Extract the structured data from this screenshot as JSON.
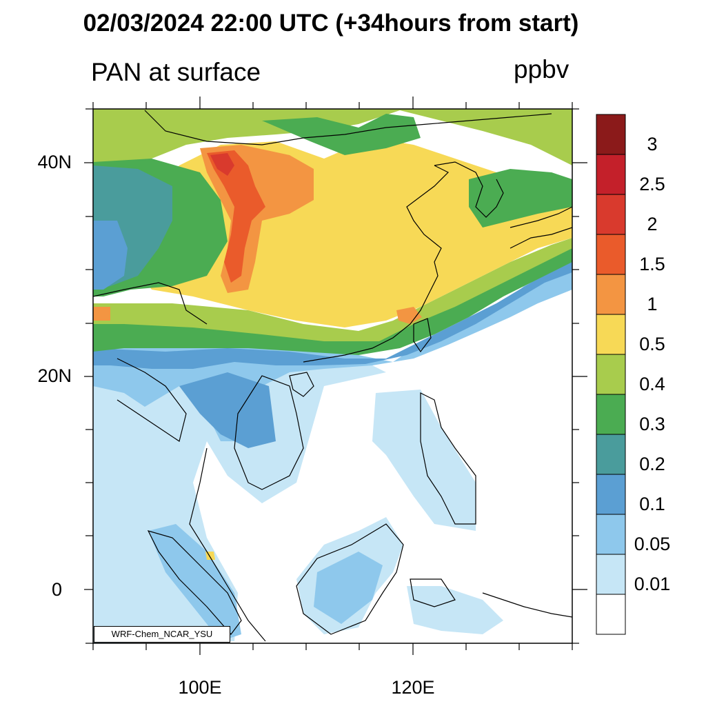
{
  "header": {
    "title": "02/03/2024 22:00 UTC (+34hours from start)",
    "variable": "PAN at surface",
    "units": "ppbv"
  },
  "map": {
    "lat_ticks": [
      "40N",
      "20N",
      "0"
    ],
    "lon_ticks": [
      "100E",
      "120E"
    ],
    "credit": "WRF-Chem_NCAR_YSU"
  },
  "colorbar": {
    "labels": [
      "3",
      "2.5",
      "2",
      "1.5",
      "1",
      "0.5",
      "0.4",
      "0.3",
      "0.2",
      "0.1",
      "0.05",
      "0.01"
    ],
    "colors": [
      "#8b1a1a",
      "#c4202a",
      "#d93a2d",
      "#ea5b2b",
      "#f39542",
      "#f7d956",
      "#a8cc4d",
      "#4bac52",
      "#4a9c9c",
      "#5b9fd3",
      "#8ec8ec",
      "#c6e6f6",
      "#ffffff"
    ]
  }
}
